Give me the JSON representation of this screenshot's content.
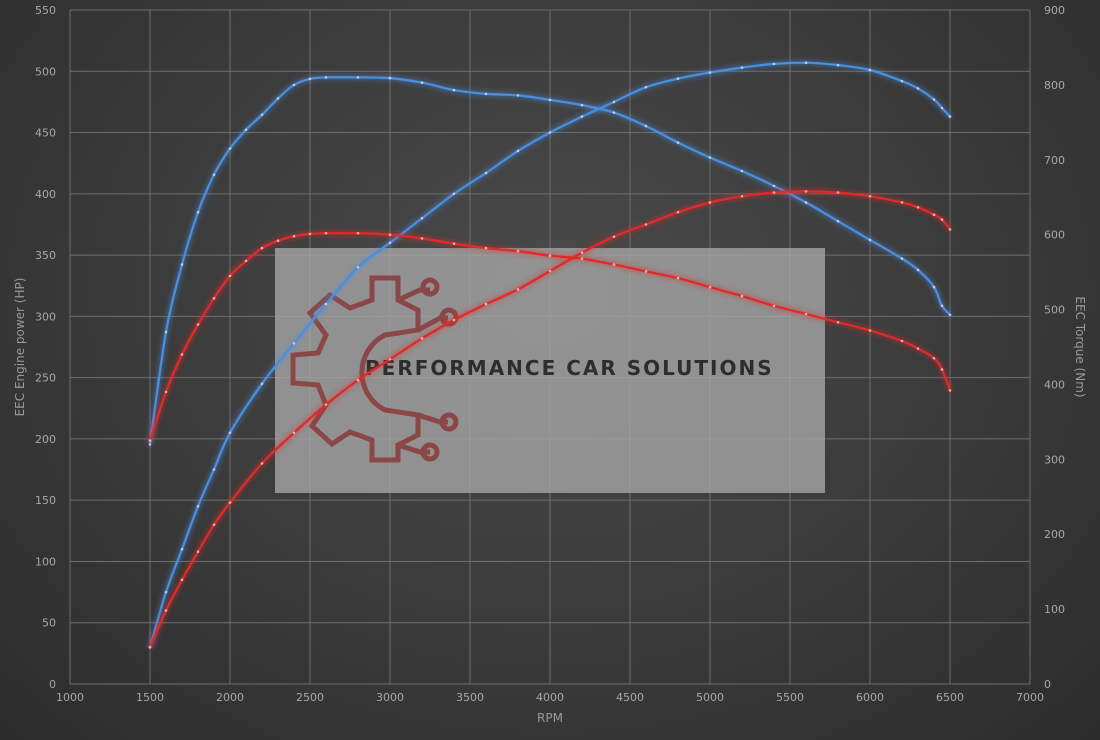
{
  "chart_data": {
    "type": "line",
    "title": "",
    "xlabel": "RPM",
    "ylabel_left": "EEC Engine power (HP)",
    "ylabel_right": "EEC Torque (Nm)",
    "xlim": [
      1000,
      7000
    ],
    "ylim_left": [
      0,
      550
    ],
    "ylim_right": [
      0,
      900
    ],
    "x_ticks": [
      1000,
      1500,
      2000,
      2500,
      3000,
      3500,
      4000,
      4500,
      5000,
      5500,
      6000,
      6500,
      7000
    ],
    "y_ticks_left": [
      0,
      50,
      100,
      150,
      200,
      250,
      300,
      350,
      400,
      450,
      500,
      550
    ],
    "y_ticks_right": [
      0,
      100,
      200,
      300,
      400,
      500,
      600,
      700,
      800,
      900
    ],
    "grid": true,
    "series": [
      {
        "axis": "right",
        "color": "#4a8fe0",
        "x": [
          1500,
          1600,
          1700,
          1800,
          1900,
          2000,
          2100,
          2200,
          2300,
          2400,
          2500,
          2600,
          2800,
          3000,
          3200,
          3400,
          3600,
          3800,
          4000,
          4200,
          4400,
          4600,
          4800,
          5000,
          5200,
          5400,
          5600,
          5800,
          6000,
          6200,
          6300,
          6400,
          6450,
          6500
        ],
        "y": [
          320,
          470,
          560,
          630,
          680,
          715,
          740,
          760,
          782,
          800,
          808,
          810,
          810,
          809,
          803,
          793,
          788,
          786,
          780,
          773,
          763,
          745,
          723,
          703,
          685,
          665,
          643,
          618,
          593,
          568,
          553,
          530,
          505,
          493
        ]
      },
      {
        "axis": "left",
        "color": "#4a8fe0",
        "x": [
          1500,
          1600,
          1700,
          1800,
          1900,
          2000,
          2200,
          2400,
          2600,
          2800,
          3000,
          3200,
          3400,
          3600,
          3800,
          4000,
          4200,
          4400,
          4600,
          4800,
          5000,
          5200,
          5400,
          5600,
          5800,
          6000,
          6200,
          6300,
          6400,
          6450,
          6500
        ],
        "y": [
          30,
          75,
          110,
          145,
          175,
          205,
          245,
          278,
          310,
          340,
          360,
          380,
          400,
          417,
          435,
          450,
          463,
          475,
          487,
          494,
          499,
          503,
          506,
          507,
          505,
          501,
          492,
          486,
          477,
          470,
          463
        ]
      },
      {
        "axis": "right",
        "color": "#e02a2a",
        "x": [
          1500,
          1600,
          1700,
          1800,
          1900,
          2000,
          2100,
          2200,
          2300,
          2400,
          2500,
          2600,
          2800,
          3000,
          3200,
          3400,
          3600,
          3800,
          4000,
          4200,
          4400,
          4600,
          4800,
          5000,
          5200,
          5400,
          5600,
          5800,
          6000,
          6200,
          6300,
          6400,
          6450,
          6500
        ],
        "y": [
          325,
          390,
          440,
          480,
          515,
          545,
          565,
          582,
          592,
          598,
          601,
          602,
          602,
          600,
          595,
          588,
          582,
          578,
          572,
          568,
          560,
          551,
          542,
          530,
          518,
          505,
          494,
          483,
          472,
          458,
          448,
          435,
          420,
          392
        ]
      },
      {
        "axis": "left",
        "color": "#e02a2a",
        "x": [
          1500,
          1600,
          1700,
          1800,
          1900,
          2000,
          2200,
          2400,
          2600,
          2800,
          3000,
          3200,
          3400,
          3600,
          3800,
          4000,
          4200,
          4400,
          4600,
          4800,
          5000,
          5200,
          5400,
          5600,
          5800,
          6000,
          6200,
          6300,
          6400,
          6450,
          6500
        ],
        "y": [
          30,
          60,
          85,
          108,
          130,
          148,
          180,
          205,
          228,
          248,
          265,
          282,
          297,
          310,
          322,
          337,
          352,
          365,
          375,
          385,
          393,
          398,
          401,
          402,
          401,
          398,
          393,
          389,
          383,
          379,
          371
        ]
      }
    ]
  },
  "watermark": {
    "text": "PERFORMANCE CAR SOLUTIONS",
    "logo_icon": "gear-circuit-icon"
  }
}
